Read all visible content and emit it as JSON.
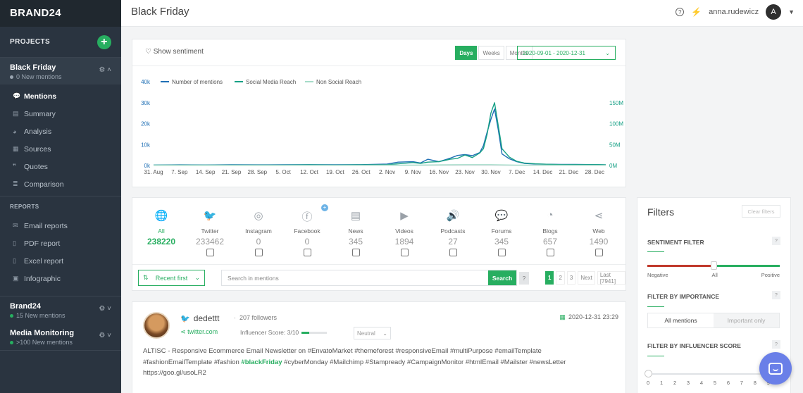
{
  "app": {
    "logo": "BRAND24"
  },
  "sidebar": {
    "projects_label": "PROJECTS",
    "add_project": "+",
    "projects": [
      {
        "name": "Black Friday",
        "count": "0",
        "suffix": "New mentions",
        "active": true
      },
      {
        "name": "Brand24",
        "count": "15",
        "suffix": "New mentions"
      },
      {
        "name": "Media Monitoring",
        "count": ">100",
        "suffix": "New mentions"
      }
    ],
    "nav": [
      {
        "label": "Mentions",
        "icon": "speech-bubbles-icon",
        "glyph": "💬",
        "active": true
      },
      {
        "label": "Summary",
        "icon": "document-icon",
        "glyph": "▤"
      },
      {
        "label": "Analysis",
        "icon": "pie-chart-icon",
        "glyph": "◕"
      },
      {
        "label": "Sources",
        "icon": "building-icon",
        "glyph": "▦"
      },
      {
        "label": "Quotes",
        "icon": "quote-icon",
        "glyph": "❞"
      },
      {
        "label": "Comparison",
        "icon": "list-icon",
        "glyph": "≣"
      }
    ],
    "reports_label": "REPORTS",
    "reports": [
      {
        "label": "Email reports",
        "icon": "envelope-icon",
        "glyph": "✉"
      },
      {
        "label": "PDF report",
        "icon": "file-icon",
        "glyph": "▯"
      },
      {
        "label": "Excel report",
        "icon": "file-icon",
        "glyph": "▯"
      },
      {
        "label": "Infographic",
        "icon": "image-icon",
        "glyph": "▣"
      }
    ]
  },
  "topbar": {
    "title": "Black Friday",
    "help": "?",
    "username": "anna.rudewicz",
    "avatar_letter": "A"
  },
  "chart_panel": {
    "show_sentiment": "Show sentiment",
    "periods": [
      "Days",
      "Weeks",
      "Months"
    ],
    "active_period": "Days",
    "date_range": "2020-09-01 - 2020-12-31"
  },
  "chart_data": {
    "type": "line",
    "title": "",
    "legend": [
      "Number of mentions",
      "Social Media Reach",
      "Non Social Reach"
    ],
    "legend_placement": "top-left",
    "x_ticks": [
      "31. Aug",
      "7. Sep",
      "14. Sep",
      "21. Sep",
      "28. Sep",
      "5. Oct",
      "12. Oct",
      "19. Oct",
      "26. Oct",
      "2. Nov",
      "9. Nov",
      "16. Nov",
      "23. Nov",
      "30. Nov",
      "7. Dec",
      "14. Dec",
      "21. Dec",
      "28. Dec"
    ],
    "y_left_ticks": [
      "0k",
      "10k",
      "20k",
      "30k",
      "40k"
    ],
    "y_left_range": [
      0,
      40000
    ],
    "y_right_ticks": [
      "0M",
      "50M",
      "100M",
      "150M"
    ],
    "y_right_range": [
      0,
      200
    ],
    "colors": {
      "mentions": "#1f6fb5",
      "social": "#16a085",
      "nonsocial": "#a6dcc9"
    },
    "series": [
      {
        "name": "Number of mentions",
        "axis": "left",
        "x": [
          0,
          7,
          14,
          21,
          28,
          35,
          42,
          49,
          56,
          63,
          66,
          70,
          72,
          74,
          77,
          80,
          82,
          84,
          86,
          88,
          89,
          90,
          91,
          92,
          93,
          94,
          96,
          98,
          100,
          103,
          106,
          110,
          114,
          120,
          122
        ],
        "values": [
          200,
          300,
          250,
          350,
          300,
          350,
          400,
          350,
          400,
          700,
          1600,
          1800,
          1200,
          3000,
          1800,
          3500,
          4800,
          5200,
          4700,
          6200,
          9500,
          16000,
          22000,
          27000,
          17000,
          5500,
          3200,
          1800,
          1000,
          700,
          600,
          500,
          500,
          400,
          300
        ]
      },
      {
        "name": "Social Media Reach",
        "axis": "right",
        "x": [
          0,
          7,
          14,
          21,
          28,
          35,
          42,
          49,
          56,
          63,
          66,
          70,
          72,
          74,
          77,
          80,
          82,
          84,
          86,
          88,
          89,
          90,
          91,
          92,
          93,
          94,
          96,
          98,
          100,
          103,
          106,
          110,
          114,
          120,
          122
        ],
        "values": [
          1,
          1,
          1,
          1,
          1,
          1,
          1.5,
          1,
          1.5,
          2,
          4,
          7,
          5,
          8,
          9,
          15,
          17,
          25,
          19,
          30,
          40,
          75,
          125,
          150,
          95,
          40,
          20,
          10,
          6,
          4,
          3,
          2,
          2,
          2,
          1.5
        ]
      },
      {
        "name": "Non Social Reach",
        "axis": "right",
        "x": [
          0,
          7,
          14,
          21,
          28,
          35,
          42,
          49,
          56,
          63,
          70,
          77,
          84,
          91,
          98,
          105,
          112,
          122
        ],
        "values": [
          0.5,
          0.5,
          0.5,
          0.5,
          0.5,
          0.5,
          0.5,
          0.5,
          0.5,
          0.8,
          1,
          1.5,
          2,
          2,
          1,
          0.8,
          0.6,
          0.5
        ]
      }
    ],
    "grid": false
  },
  "sources": {
    "items": [
      {
        "label": "All",
        "count": "238220",
        "icon": "globe-icon",
        "glyph": "🌐",
        "active": true
      },
      {
        "label": "Twitter",
        "count": "233462",
        "icon": "twitter-icon",
        "glyph": "🐦"
      },
      {
        "label": "Instagram",
        "count": "0",
        "icon": "instagram-icon",
        "glyph": "◎"
      },
      {
        "label": "Facebook",
        "count": "0",
        "icon": "facebook-icon",
        "glyph": "ⓕ"
      },
      {
        "label": "News",
        "count": "345",
        "icon": "newspaper-icon",
        "glyph": "▤"
      },
      {
        "label": "Videos",
        "count": "1894",
        "icon": "play-icon",
        "glyph": "▶"
      },
      {
        "label": "Podcasts",
        "count": "27",
        "icon": "speaker-icon",
        "glyph": "🔊"
      },
      {
        "label": "Forums",
        "count": "345",
        "icon": "chat-icon",
        "glyph": "💬"
      },
      {
        "label": "Blogs",
        "count": "657",
        "icon": "rss-icon",
        "glyph": "◔"
      },
      {
        "label": "Web",
        "count": "1490",
        "icon": "share-icon",
        "glyph": "⋖"
      }
    ],
    "facebook_plus": "+",
    "sort": "Recent first",
    "search_placeholder": "Search in mentions",
    "search_button": "Search",
    "search_help": "?",
    "pages": [
      "1",
      "2",
      "3",
      "Next",
      "Last [7941]"
    ]
  },
  "mention": {
    "author": "dedettt",
    "followers": "207 followers",
    "source": "twitter.com",
    "influence": "Influencer Score: 3/10",
    "influence_value": 0.3,
    "sentiment": "Neutral",
    "date": "2020-12-31 23:29",
    "text_before": "ALTISC - Responsive Ecommerce Email Newsletter on #EnvatoMarket #themeforest #responsiveEmail #multiPurpose #emailTemplate #fashionEmailTemplate #fashion ",
    "highlight": "#blackFriday",
    "text_after": " #cyberMonday #Mailchimp #Stampready #CampaignMonitor #htmlEmail #Mailster #newsLetter https://goo.gl/usoLR2"
  },
  "filters": {
    "title": "Filters",
    "clear": "Clear filters",
    "sentiment_label": "SENTIMENT FILTER",
    "sentiment_scale": [
      "Negative",
      "All",
      "Positive"
    ],
    "importance_label": "FILTER BY IMPORTANCE",
    "importance_options": [
      "All mentions",
      "Important only"
    ],
    "influencer_label": "FILTER BY INFLUENCER SCORE",
    "influencer_ticks": [
      "0",
      "1",
      "2",
      "3",
      "4",
      "5",
      "6",
      "7",
      "8",
      "9"
    ],
    "help": "?"
  }
}
